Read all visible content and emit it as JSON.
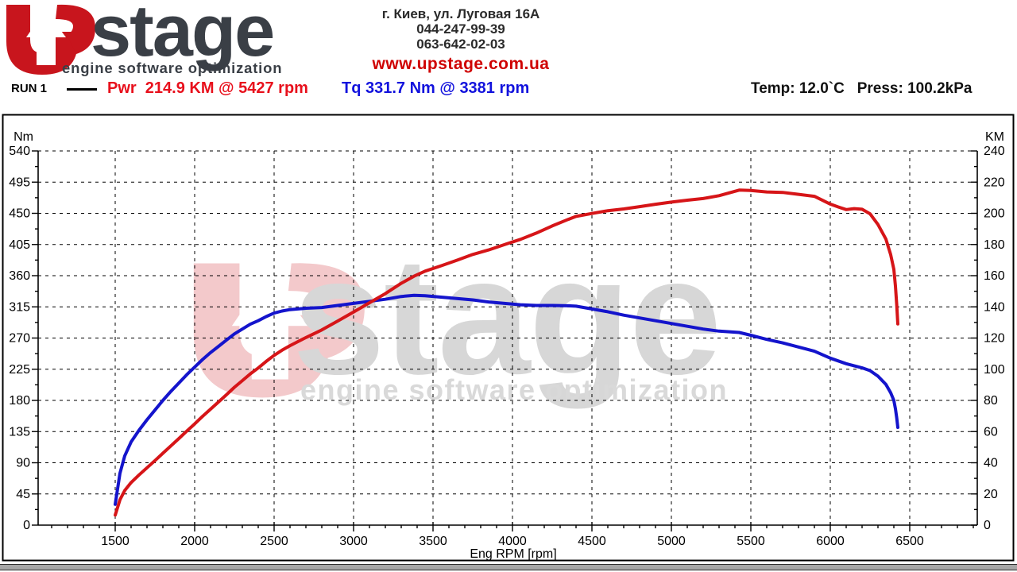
{
  "header": {
    "logo": {
      "brand": "stage",
      "tagline": "engine software optimization",
      "icon": "upstage-u-arrow-icon",
      "brand_color": "#3a3f46",
      "red": "#c8151d"
    },
    "contact": {
      "address": "г. Киев, ул. Луговая 16А",
      "phone1": "044-247-99-39",
      "phone2": "063-642-02-03",
      "website": "www.upstage.com.ua"
    },
    "run_label": "RUN 1",
    "power_readout": "Pwr  214.9 KM @ 5427 rpm",
    "torque_readout": "Tq 331.7 Nm @ 3381 rpm",
    "ambient": "Temp: 12.0`C   Press: 100.2kPa"
  },
  "colors": {
    "power_curve": "#d61518",
    "torque_curve": "#1414cc",
    "grid": "#000000",
    "watermark_gray": "#d7d7d7",
    "watermark_pink": "#f3c9cb"
  },
  "chart_data": {
    "type": "line",
    "title": "",
    "xlabel": "Eng RPM [rpm]",
    "y_left_label": "Nm",
    "y_right_label": "KM",
    "xlim": [
      1015,
      6925
    ],
    "x_ticks": [
      1500,
      2000,
      2500,
      3000,
      3500,
      4000,
      4500,
      5000,
      5500,
      6000,
      6500
    ],
    "x_minor_step": 100,
    "ylim_left": [
      0,
      540
    ],
    "y_left_ticks": [
      0,
      45,
      90,
      135,
      180,
      225,
      270,
      315,
      360,
      405,
      450,
      495,
      540
    ],
    "ylim_right": [
      0,
      240
    ],
    "y_right_ticks": [
      0,
      20,
      40,
      60,
      80,
      100,
      120,
      140,
      160,
      180,
      200,
      220,
      240
    ],
    "grid": "dashed",
    "legend_position": "top",
    "series": [
      {
        "name": "Torque",
        "axis": "left",
        "unit": "Nm",
        "peak": "331.7 Nm @ 3381 rpm",
        "points": [
          [
            1500,
            30
          ],
          [
            1510,
            45
          ],
          [
            1530,
            75
          ],
          [
            1560,
            100
          ],
          [
            1600,
            120
          ],
          [
            1650,
            137
          ],
          [
            1700,
            152
          ],
          [
            1750,
            166
          ],
          [
            1800,
            180
          ],
          [
            1850,
            193
          ],
          [
            1900,
            205
          ],
          [
            1950,
            217
          ],
          [
            2000,
            228
          ],
          [
            2050,
            239
          ],
          [
            2100,
            249
          ],
          [
            2150,
            258
          ],
          [
            2200,
            267
          ],
          [
            2250,
            276
          ],
          [
            2300,
            283
          ],
          [
            2350,
            290
          ],
          [
            2400,
            295
          ],
          [
            2450,
            301
          ],
          [
            2500,
            306
          ],
          [
            2550,
            309
          ],
          [
            2600,
            311
          ],
          [
            2700,
            313
          ],
          [
            2800,
            314
          ],
          [
            2900,
            317
          ],
          [
            3000,
            320
          ],
          [
            3100,
            323
          ],
          [
            3200,
            326
          ],
          [
            3300,
            330
          ],
          [
            3381,
            331.7
          ],
          [
            3450,
            331
          ],
          [
            3550,
            329
          ],
          [
            3650,
            327
          ],
          [
            3750,
            325
          ],
          [
            3850,
            322
          ],
          [
            3950,
            320
          ],
          [
            4050,
            318
          ],
          [
            4150,
            317
          ],
          [
            4250,
            317
          ],
          [
            4350,
            316.5
          ],
          [
            4400,
            316
          ],
          [
            4500,
            312
          ],
          [
            4600,
            308
          ],
          [
            4700,
            303
          ],
          [
            4800,
            299
          ],
          [
            4900,
            295
          ],
          [
            5000,
            291
          ],
          [
            5100,
            287
          ],
          [
            5200,
            283
          ],
          [
            5300,
            280
          ],
          [
            5427,
            278
          ],
          [
            5500,
            274
          ],
          [
            5600,
            268
          ],
          [
            5700,
            263
          ],
          [
            5800,
            257
          ],
          [
            5900,
            251
          ],
          [
            6000,
            241
          ],
          [
            6050,
            237
          ],
          [
            6100,
            233
          ],
          [
            6150,
            230
          ],
          [
            6200,
            227
          ],
          [
            6250,
            223
          ],
          [
            6300,
            215
          ],
          [
            6350,
            203
          ],
          [
            6380,
            191
          ],
          [
            6400,
            180
          ],
          [
            6410,
            168
          ],
          [
            6418,
            155
          ],
          [
            6425,
            141
          ]
        ]
      },
      {
        "name": "Power",
        "axis": "right",
        "unit": "KM",
        "peak": "214.9 KM @ 5427 rpm",
        "points": [
          [
            1500,
            6.4
          ],
          [
            1510,
            9.7
          ],
          [
            1530,
            16.3
          ],
          [
            1560,
            22.2
          ],
          [
            1600,
            27.3
          ],
          [
            1650,
            32.2
          ],
          [
            1700,
            36.8
          ],
          [
            1750,
            41.4
          ],
          [
            1800,
            46.1
          ],
          [
            1850,
            50.8
          ],
          [
            1900,
            55.5
          ],
          [
            1950,
            60.3
          ],
          [
            2000,
            64.9
          ],
          [
            2050,
            69.8
          ],
          [
            2100,
            74.4
          ],
          [
            2150,
            79
          ],
          [
            2200,
            83.6
          ],
          [
            2250,
            88.4
          ],
          [
            2300,
            92.7
          ],
          [
            2350,
            97
          ],
          [
            2400,
            100.8
          ],
          [
            2450,
            105
          ],
          [
            2500,
            108.9
          ],
          [
            2550,
            112.2
          ],
          [
            2600,
            115.1
          ],
          [
            2700,
            120.3
          ],
          [
            2800,
            125.2
          ],
          [
            2900,
            130.9
          ],
          [
            3000,
            136.7
          ],
          [
            3100,
            142.6
          ],
          [
            3200,
            148.5
          ],
          [
            3300,
            155.1
          ],
          [
            3381,
            159.7
          ],
          [
            3450,
            162.9
          ],
          [
            3550,
            166.3
          ],
          [
            3650,
            169.9
          ],
          [
            3750,
            173.6
          ],
          [
            3850,
            176.5
          ],
          [
            3950,
            179.9
          ],
          [
            4050,
            183.3
          ],
          [
            4150,
            187.3
          ],
          [
            4250,
            191.9
          ],
          [
            4350,
            196.1
          ],
          [
            4400,
            198
          ],
          [
            4500,
            199.9
          ],
          [
            4600,
            201.7
          ],
          [
            4700,
            202.8
          ],
          [
            4800,
            204.3
          ],
          [
            4900,
            205.8
          ],
          [
            5000,
            207.2
          ],
          [
            5100,
            208.4
          ],
          [
            5200,
            209.5
          ],
          [
            5300,
            211.3
          ],
          [
            5427,
            214.9
          ],
          [
            5500,
            214.6
          ],
          [
            5600,
            213.7
          ],
          [
            5700,
            213.4
          ],
          [
            5800,
            212.2
          ],
          [
            5900,
            210.9
          ],
          [
            6000,
            205.9
          ],
          [
            6050,
            204.1
          ],
          [
            6100,
            202.4
          ],
          [
            6150,
            203
          ],
          [
            6200,
            202.6
          ],
          [
            6250,
            199.7
          ],
          [
            6300,
            192.8
          ],
          [
            6350,
            183.5
          ],
          [
            6380,
            173.5
          ],
          [
            6400,
            164
          ],
          [
            6410,
            153.3
          ],
          [
            6418,
            141.6
          ],
          [
            6425,
            129
          ]
        ]
      }
    ]
  }
}
